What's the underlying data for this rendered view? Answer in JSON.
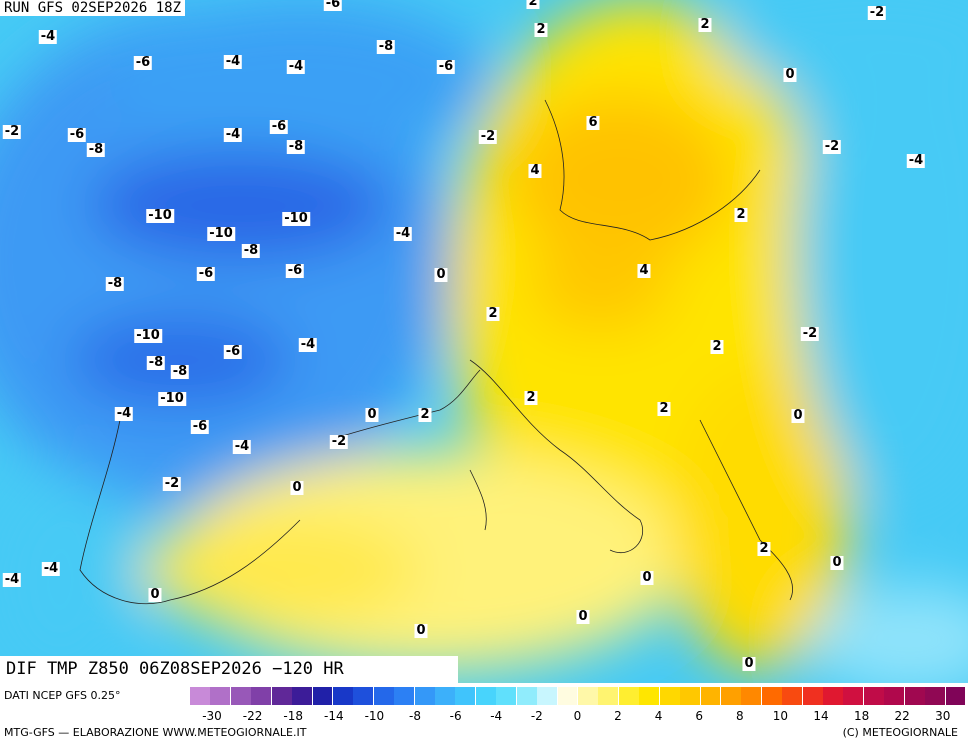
{
  "header": {
    "run": "RUN GFS 02SEP2026 18Z"
  },
  "map": {
    "title": "DIF TMP Z850 06Z08SEP2026 −120 HR",
    "contour_labels": [
      -6,
      2,
      -2,
      2,
      2,
      -4,
      -8,
      -6,
      -4,
      -4,
      -6,
      0,
      -2,
      -6,
      -4,
      -6,
      6,
      -2,
      -8,
      -8,
      -2,
      -4,
      4,
      -10,
      -10,
      2,
      -10,
      -4,
      -8,
      -6,
      -6,
      0,
      4,
      -8,
      2,
      -2,
      -10,
      -6,
      -4,
      2,
      -8,
      -8,
      -10,
      2,
      -4,
      0,
      2,
      2,
      0,
      -6,
      -2,
      -4,
      -2,
      0,
      2,
      0,
      -4,
      -4,
      0,
      0,
      0,
      0,
      0
    ]
  },
  "footer": {
    "source": "DATI NCEP GFS 0.25°",
    "credit": "MTG-GFS — ELABORAZIONE WWW.METEOGIORNALE.IT",
    "copyright": "(C) METEOGIORNALE"
  },
  "colorbar": {
    "labels": [
      -30,
      -22,
      -18,
      -14,
      -10,
      -8,
      -6,
      -4,
      -2,
      0,
      2,
      4,
      6,
      8,
      10,
      14,
      18,
      22,
      30
    ]
  }
}
